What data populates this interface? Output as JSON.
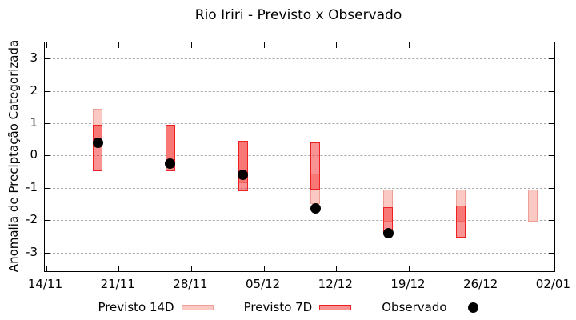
{
  "chart_data": {
    "type": "bar",
    "subtype": "floating-range-bars-with-points",
    "title": "Rio Iriri - Previsto x Observado",
    "xlabel": "",
    "ylabel": "Anomalia de Preciptação Categorizada",
    "ylim": [
      -3.5,
      3.5
    ],
    "yticks": [
      3,
      2,
      1,
      0,
      -1,
      -2,
      -3
    ],
    "grid": "dashed-horizontal",
    "legend_position": "bottom",
    "xticklabels": [
      "14/11",
      "21/11",
      "28/11",
      "05/12",
      "12/12",
      "19/12",
      "26/12",
      "02/01"
    ],
    "xtick_day_offsets": [
      0,
      7,
      14,
      21,
      28,
      35,
      42,
      49
    ],
    "series": [
      {
        "name": "Previsto 14D",
        "type": "range-bar",
        "bars": [
          {
            "date": "19/11",
            "day": 5,
            "high": 1.45,
            "low": 0.25
          },
          {
            "date": "26/11",
            "day": 12,
            "high": 0.95,
            "low": -0.25
          },
          {
            "date": "03/12",
            "day": 19,
            "high": 0.45,
            "low": -0.85
          },
          {
            "date": "10/12",
            "day": 26,
            "high": -0.55,
            "low": -1.5
          },
          {
            "date": "17/12",
            "day": 33,
            "high": -1.05,
            "low": -2.05
          },
          {
            "date": "24/12",
            "day": 40,
            "high": -1.05,
            "low": -2.05
          },
          {
            "date": "31/12",
            "day": 47,
            "high": -1.05,
            "low": -2.05
          }
        ]
      },
      {
        "name": "Previsto 7D",
        "type": "range-bar",
        "bars": [
          {
            "date": "19/11",
            "day": 5,
            "high": 0.95,
            "low": -0.5
          },
          {
            "date": "26/11",
            "day": 12,
            "high": 0.95,
            "low": -0.5
          },
          {
            "date": "03/12",
            "day": 19,
            "high": 0.45,
            "low": -1.1
          },
          {
            "date": "10/12",
            "day": 26,
            "high": 0.4,
            "low": -1.05
          },
          {
            "date": "17/12",
            "day": 33,
            "high": -1.6,
            "low": -2.45
          },
          {
            "date": "24/12",
            "day": 40,
            "high": -1.55,
            "low": -2.55
          }
        ]
      },
      {
        "name": "Observado",
        "type": "point",
        "points": [
          {
            "date": "19/11",
            "day": 5,
            "value": 0.4
          },
          {
            "date": "26/11",
            "day": 12,
            "value": -0.25
          },
          {
            "date": "03/12",
            "day": 19,
            "value": -0.6
          },
          {
            "date": "10/12",
            "day": 26,
            "value": -1.65
          },
          {
            "date": "17/12",
            "day": 33,
            "value": -2.4
          }
        ]
      }
    ],
    "colors": {
      "previsto_14d_fill": "#fbc9c3",
      "previsto_14d_border": "#ef9e96",
      "previsto_7d_fill": "#f42828",
      "previsto_7d_fill_alpha": 0.5,
      "previsto_7d_border": "#ed2024",
      "observado": "#000000",
      "grid": "#a6a6a6",
      "axis": "#000000",
      "background": "#ffffff"
    }
  },
  "legend": {
    "items": [
      {
        "label": "Previsto 14D"
      },
      {
        "label": "Previsto 7D"
      },
      {
        "label": "Observado"
      }
    ]
  }
}
